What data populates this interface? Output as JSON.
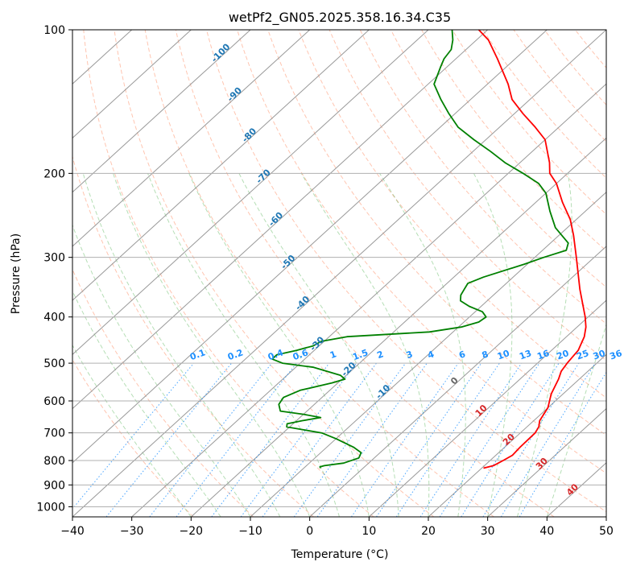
{
  "chart_data": {
    "type": "line",
    "chart_kind": "skew-T log-P diagram",
    "title": "wetPf2_GN05.2025.358.16.34.C35",
    "xlabel": "Temperature (°C)",
    "ylabel": "Pressure (hPa)",
    "xlim": [
      -40,
      50
    ],
    "ylim": [
      1050,
      100
    ],
    "y_scale": "log",
    "x_ticks": [
      -40,
      -30,
      -20,
      -10,
      0,
      10,
      20,
      30,
      40,
      50
    ],
    "y_ticks": [
      1000,
      900,
      800,
      700,
      600,
      500,
      400,
      300,
      200,
      100
    ],
    "grid": true,
    "colors": {
      "temperature": "#ff0000",
      "dewpoint": "#008000",
      "isotherm": "#999999",
      "dry_adiabat": "#ff7f50",
      "moist_adiabat": "#2ca02c",
      "mixing_ratio": "#1e90ff",
      "isotherm_label": "#1f77b4",
      "warm_label": "#d62728"
    },
    "isotherm_labels": {
      "cold": [
        "-100",
        "-90",
        "-80",
        "-70",
        "-60",
        "-50",
        "-40",
        "-30",
        "-20",
        "-10"
      ],
      "zero": "0",
      "warm": [
        "10",
        "20",
        "30",
        "40"
      ]
    },
    "mixing_ratio_labels": [
      "0.1",
      "0.2",
      "0.4",
      "0.6",
      "1",
      "1.5",
      "2",
      "3",
      "4",
      "6",
      "8",
      "10",
      "13",
      "16",
      "20",
      "25",
      "30",
      "36"
    ],
    "series": [
      {
        "name": "temperature",
        "points": [
          [
            830,
            20.3
          ],
          [
            820,
            21.5
          ],
          [
            800,
            22.2
          ],
          [
            780,
            22.8
          ],
          [
            750,
            22.6
          ],
          [
            700,
            22.5
          ],
          [
            680,
            22.0
          ],
          [
            660,
            21.0
          ],
          [
            620,
            20.0
          ],
          [
            580,
            18.0
          ],
          [
            540,
            16.5
          ],
          [
            520,
            15.5
          ],
          [
            500,
            15.0
          ],
          [
            470,
            14.5
          ],
          [
            440,
            13.0
          ],
          [
            420,
            11.5
          ],
          [
            400,
            9.5
          ],
          [
            350,
            3.5
          ],
          [
            300,
            -3.0
          ],
          [
            270,
            -7.5
          ],
          [
            250,
            -11.0
          ],
          [
            230,
            -15.5
          ],
          [
            210,
            -20.0
          ],
          [
            200,
            -23.0
          ],
          [
            190,
            -25.0
          ],
          [
            170,
            -30.0
          ],
          [
            160,
            -34.0
          ],
          [
            150,
            -38.5
          ],
          [
            140,
            -43.0
          ],
          [
            130,
            -46.5
          ],
          [
            115,
            -53.0
          ],
          [
            105,
            -58.0
          ],
          [
            100,
            -61.5
          ]
        ]
      },
      {
        "name": "dewpoint",
        "points": [
          [
            830,
            -7.2
          ],
          [
            825,
            -7.5
          ],
          [
            820,
            -7.0
          ],
          [
            810,
            -4.2
          ],
          [
            790,
            -2.6
          ],
          [
            770,
            -3.2
          ],
          [
            750,
            -5.5
          ],
          [
            720,
            -10.0
          ],
          [
            700,
            -13.5
          ],
          [
            690,
            -17.0
          ],
          [
            680,
            -20.5
          ],
          [
            670,
            -21.0
          ],
          [
            660,
            -19.0
          ],
          [
            650,
            -16.5
          ],
          [
            640,
            -20.0
          ],
          [
            630,
            -24.5
          ],
          [
            610,
            -26.0
          ],
          [
            590,
            -26.5
          ],
          [
            570,
            -25.0
          ],
          [
            550,
            -21.0
          ],
          [
            540,
            -19.5
          ],
          [
            530,
            -21.0
          ],
          [
            510,
            -27.0
          ],
          [
            500,
            -33.0
          ],
          [
            490,
            -35.5
          ],
          [
            480,
            -35.5
          ],
          [
            470,
            -33.0
          ],
          [
            460,
            -31.0
          ],
          [
            450,
            -30.5
          ],
          [
            440,
            -27.0
          ],
          [
            430,
            -14.0
          ],
          [
            420,
            -9.5
          ],
          [
            410,
            -7.5
          ],
          [
            400,
            -7.2
          ],
          [
            390,
            -8.8
          ],
          [
            380,
            -12.0
          ],
          [
            370,
            -14.5
          ],
          [
            360,
            -15.5
          ],
          [
            350,
            -16.0
          ],
          [
            340,
            -16.5
          ],
          [
            330,
            -15.0
          ],
          [
            310,
            -10.5
          ],
          [
            300,
            -8.5
          ],
          [
            290,
            -6.0
          ],
          [
            280,
            -7.0
          ],
          [
            260,
            -12.0
          ],
          [
            240,
            -16.0
          ],
          [
            220,
            -20.0
          ],
          [
            210,
            -23.0
          ],
          [
            200,
            -27.5
          ],
          [
            190,
            -32.5
          ],
          [
            180,
            -37.0
          ],
          [
            170,
            -42.0
          ],
          [
            160,
            -47.0
          ],
          [
            150,
            -51.0
          ],
          [
            140,
            -55.0
          ],
          [
            130,
            -59.0
          ],
          [
            120,
            -61.0
          ],
          [
            115,
            -62.0
          ],
          [
            110,
            -62.5
          ],
          [
            105,
            -64.0
          ],
          [
            100,
            -66.0
          ]
        ]
      }
    ]
  }
}
